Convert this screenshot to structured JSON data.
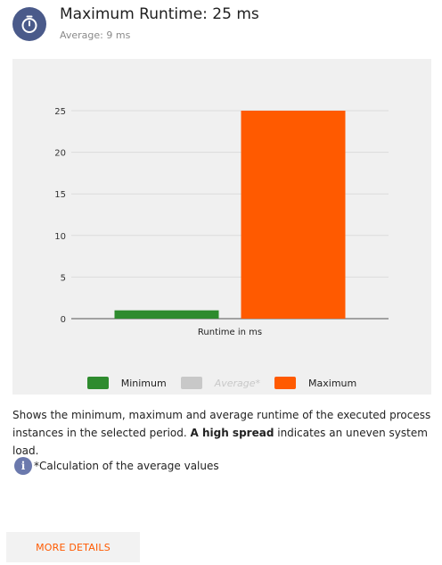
{
  "header": {
    "icon": "stopwatch-icon",
    "title": "Maximum Runtime: 25 ms",
    "subtitle": "Average: 9 ms"
  },
  "colors": {
    "minimum": "#2e8b2e",
    "average": "#c8c8c8",
    "maximum": "#ff5a00",
    "icon_bg": "#4a5a8a",
    "panel_bg": "#f0f0f0"
  },
  "chart_data": {
    "type": "bar",
    "categories": [
      "Runtime in ms"
    ],
    "xlabel": "Runtime in ms",
    "ylabel": "",
    "ylim": [
      0,
      25
    ],
    "yticks": [
      0,
      5,
      10,
      15,
      20,
      25
    ],
    "grid": true,
    "legend_position": "bottom",
    "series": [
      {
        "name": "Minimum",
        "values": [
          1
        ],
        "color": "#2e8b2e",
        "visible": true
      },
      {
        "name": "Average*",
        "values": [
          9
        ],
        "color": "#c8c8c8",
        "visible": false
      },
      {
        "name": "Maximum",
        "values": [
          25
        ],
        "color": "#ff5a00",
        "visible": true
      }
    ]
  },
  "description": {
    "text_before": "Shows the minimum, maximum and average runtime of the executed process instances in the selected period. ",
    "bold": "A high spread",
    "text_after": " indicates an uneven system load."
  },
  "note": {
    "icon": "info-icon",
    "text": "*Calculation of the average values"
  },
  "more_button": {
    "label": "MORE DETAILS"
  }
}
